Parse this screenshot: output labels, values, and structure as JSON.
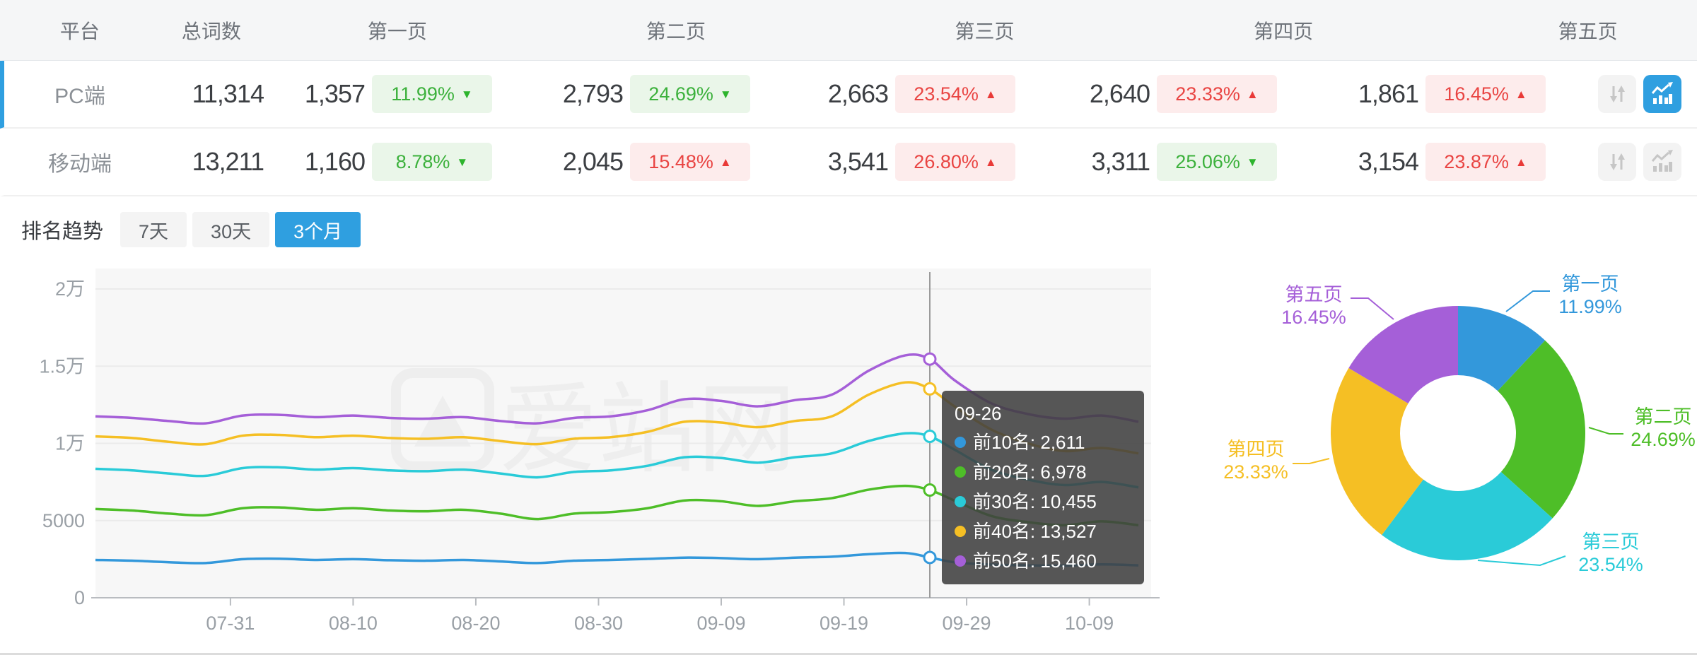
{
  "table": {
    "headers": {
      "platform": "平台",
      "total": "总词数",
      "page1": "第一页",
      "page2": "第二页",
      "page3": "第三页",
      "page4": "第四页",
      "page5": "第五页"
    },
    "rows": [
      {
        "platform": "PC端",
        "total": "11,314",
        "active": true,
        "pages": [
          {
            "value": "1,357",
            "pct": "11.99%",
            "arrow": "▼",
            "tone": "green"
          },
          {
            "value": "2,793",
            "pct": "24.69%",
            "arrow": "▼",
            "tone": "green"
          },
          {
            "value": "2,663",
            "pct": "23.54%",
            "arrow": "▲",
            "tone": "red"
          },
          {
            "value": "2,640",
            "pct": "23.33%",
            "arrow": "▲",
            "tone": "red"
          },
          {
            "value": "1,861",
            "pct": "16.45%",
            "arrow": "▲",
            "tone": "red"
          }
        ]
      },
      {
        "platform": "移动端",
        "total": "13,211",
        "active": false,
        "pages": [
          {
            "value": "1,160",
            "pct": "8.78%",
            "arrow": "▼",
            "tone": "green"
          },
          {
            "value": "2,045",
            "pct": "15.48%",
            "arrow": "▲",
            "tone": "red"
          },
          {
            "value": "3,541",
            "pct": "26.80%",
            "arrow": "▲",
            "tone": "red"
          },
          {
            "value": "3,311",
            "pct": "25.06%",
            "arrow": "▼",
            "tone": "green"
          },
          {
            "value": "3,154",
            "pct": "23.87%",
            "arrow": "▲",
            "tone": "red"
          }
        ]
      }
    ]
  },
  "trend": {
    "title": "排名趋势",
    "ranges": [
      "7天",
      "30天",
      "3个月"
    ],
    "active_range": "3个月",
    "watermark": "爱站网"
  },
  "colors": {
    "accent_blue": "#2f9fe0",
    "green_badge_text": "#3cb13c",
    "red_badge_text": "#e94442"
  },
  "chart_data": [
    {
      "type": "line",
      "title": "排名趋势 3个月",
      "x": [
        "07-20",
        "07-23",
        "07-26",
        "07-29",
        "08-01",
        "08-04",
        "08-07",
        "08-10",
        "08-13",
        "08-16",
        "08-19",
        "08-22",
        "08-25",
        "08-28",
        "08-31",
        "09-03",
        "09-06",
        "09-09",
        "09-12",
        "09-15",
        "09-18",
        "09-21",
        "09-24",
        "09-26",
        "09-28",
        "10-01",
        "10-04",
        "10-07",
        "10-10",
        "10-13"
      ],
      "x_tick_labels": [
        "07-31",
        "08-10",
        "08-20",
        "08-30",
        "09-09",
        "09-19",
        "09-29",
        "10-09"
      ],
      "ylim": [
        0,
        20000
      ],
      "y_ticks": [
        {
          "v": 0,
          "label": "0"
        },
        {
          "v": 5000,
          "label": "5000"
        },
        {
          "v": 10000,
          "label": "1万"
        },
        {
          "v": 15000,
          "label": "1.5万"
        },
        {
          "v": 20000,
          "label": "2万"
        }
      ],
      "grid": true,
      "legend": "none",
      "series": [
        {
          "name": "前10名",
          "color": "#3398DB",
          "values": [
            2450,
            2400,
            2300,
            2250,
            2500,
            2530,
            2450,
            2500,
            2430,
            2400,
            2450,
            2350,
            2250,
            2400,
            2450,
            2520,
            2600,
            2570,
            2500,
            2600,
            2660,
            2820,
            2900,
            2611,
            2300,
            2150,
            2100,
            2080,
            2160,
            2100
          ]
        },
        {
          "name": "前20名",
          "color": "#4EBE28",
          "values": [
            5750,
            5650,
            5450,
            5350,
            5800,
            5850,
            5700,
            5800,
            5650,
            5600,
            5700,
            5450,
            5100,
            5450,
            5550,
            5800,
            6300,
            6250,
            5950,
            6250,
            6450,
            7000,
            7250,
            6978,
            6300,
            5300,
            4900,
            4700,
            4950,
            4700
          ]
        },
        {
          "name": "前30名",
          "color": "#2ACBD8",
          "values": [
            8350,
            8250,
            8050,
            7900,
            8400,
            8450,
            8300,
            8400,
            8250,
            8200,
            8300,
            8050,
            7800,
            8150,
            8250,
            8550,
            9100,
            9050,
            8750,
            9100,
            9350,
            10150,
            10650,
            10455,
            9600,
            8300,
            7650,
            7300,
            7500,
            7150
          ]
        },
        {
          "name": "前40名",
          "color": "#F5BF24",
          "values": [
            10450,
            10350,
            10100,
            9950,
            10500,
            10550,
            10400,
            10500,
            10350,
            10300,
            10400,
            10150,
            9950,
            10300,
            10400,
            10750,
            11400,
            11350,
            11050,
            11450,
            11750,
            13150,
            13950,
            13527,
            12400,
            10900,
            10000,
            9500,
            9700,
            9350
          ]
        },
        {
          "name": "前50名",
          "color": "#A55FD8",
          "values": [
            11750,
            11650,
            11450,
            11300,
            11800,
            11850,
            11700,
            11800,
            11650,
            11600,
            11700,
            11450,
            11300,
            11650,
            11750,
            12150,
            12860,
            12750,
            12400,
            12800,
            13150,
            14700,
            15700,
            15460,
            14100,
            12600,
            11900,
            11600,
            11800,
            11400
          ]
        }
      ],
      "tooltip": {
        "date": "09-26",
        "items": [
          {
            "name": "前10名",
            "value": "2,611",
            "color": "#3398DB"
          },
          {
            "name": "前20名",
            "value": "6,978",
            "color": "#4EBE28"
          },
          {
            "name": "前30名",
            "value": "10,455",
            "color": "#2ACBD8"
          },
          {
            "name": "前40名",
            "value": "13,527",
            "color": "#F5BF24"
          },
          {
            "name": "前50名",
            "value": "15,460",
            "color": "#A55FD8"
          }
        ]
      }
    },
    {
      "type": "pie",
      "donut": true,
      "slices": [
        {
          "label": "第一页",
          "pct": 11.99,
          "pct_label": "11.99%",
          "color": "#3398DB"
        },
        {
          "label": "第二页",
          "pct": 24.69,
          "pct_label": "24.69%",
          "color": "#4EBE28"
        },
        {
          "label": "第三页",
          "pct": 23.54,
          "pct_label": "23.54%",
          "color": "#2ACBD8"
        },
        {
          "label": "第四页",
          "pct": 23.33,
          "pct_label": "23.33%",
          "color": "#F5BF24"
        },
        {
          "label": "第五页",
          "pct": 16.45,
          "pct_label": "16.45%",
          "color": "#A55FD8"
        }
      ]
    }
  ]
}
